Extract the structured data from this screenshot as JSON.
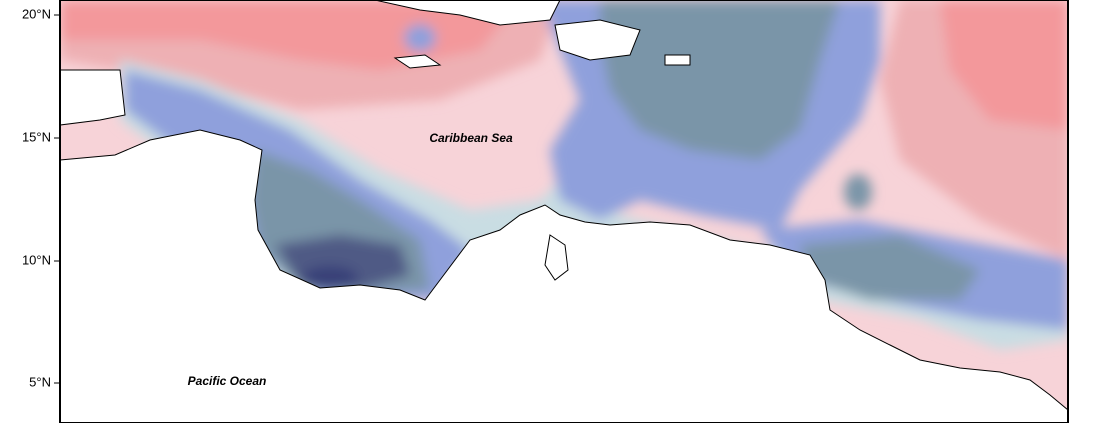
{
  "map": {
    "lat_ticks": [
      "20°N",
      "15°N",
      "10°N",
      "5°N"
    ],
    "labels": {
      "caribbean": "Caribbean Sea",
      "pacific": "Pacific Ocean"
    }
  }
}
